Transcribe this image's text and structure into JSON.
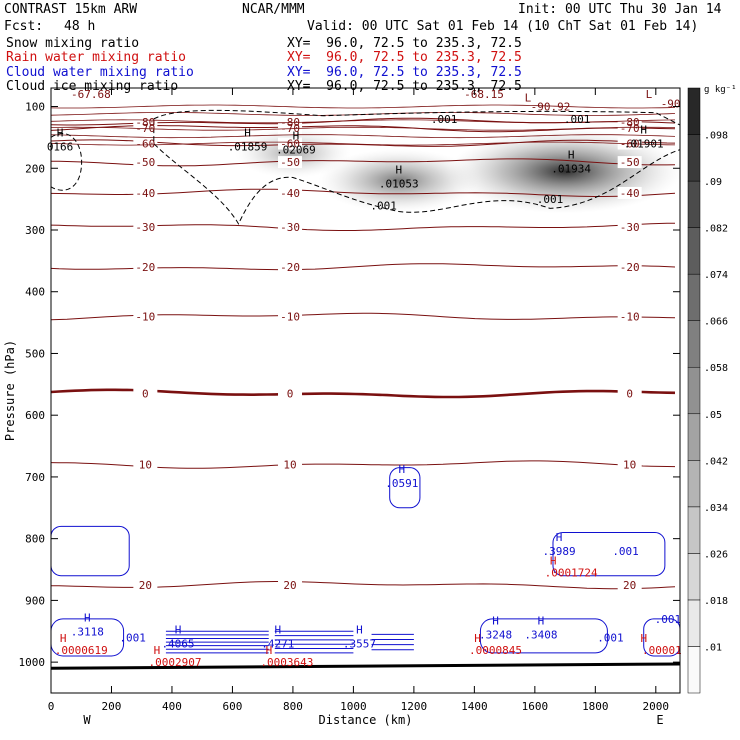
{
  "header": {
    "model": "CONTRAST 15km ARW",
    "center": "NCAR/MMM",
    "init": "Init: 00 UTC Thu 30 Jan 14",
    "fcst_label": "Fcst:",
    "fcst_value": "48 h",
    "valid": "Valid: 00 UTC Sat 01 Feb 14 (10 ChT Sat 01 Feb 14)"
  },
  "fields": [
    {
      "name": "Snow mixing ratio",
      "color": "#000000",
      "xy": "XY=  96.0, 72.5 to 235.3, 72.5"
    },
    {
      "name": "Rain water mixing ratio",
      "color": "#d01010",
      "xy": "XY=  96.0, 72.5 to 235.3, 72.5"
    },
    {
      "name": "Cloud water mixing ratio",
      "color": "#1010d0",
      "xy": "XY=  96.0, 72.5 to 235.3, 72.5"
    },
    {
      "name": "Cloud ice mixing ratio",
      "color": "#000000",
      "xy": "XY=  96.0, 72.5 to 235.3, 72.5"
    }
  ],
  "chart_data": {
    "type": "contour",
    "xlabel": "Distance (km)",
    "ylabel": "Pressure (hPa)",
    "xlim": [
      0,
      2080
    ],
    "ylim": [
      1050,
      70
    ],
    "x_ticks": [
      0,
      200,
      400,
      600,
      800,
      1000,
      1200,
      1400,
      1600,
      1800,
      2000
    ],
    "y_ticks": [
      100,
      200,
      300,
      400,
      500,
      600,
      700,
      800,
      900,
      1000
    ],
    "x_end_labels": {
      "left": "W",
      "right": "E"
    },
    "colorbar": {
      "unit": "g kg⁻¹",
      "levels": [
        ".01",
        ".018",
        ".026",
        ".034",
        ".042",
        ".05",
        ".058",
        ".066",
        ".074",
        ".082",
        ".09",
        ".098"
      ]
    },
    "temperature_contours": [
      {
        "label": "-80",
        "p": 125
      },
      {
        "label": "-70",
        "p": 135
      },
      {
        "label": "-60",
        "p": 160
      },
      {
        "label": "-50",
        "p": 190
      },
      {
        "label": "-40",
        "p": 240
      },
      {
        "label": "-30",
        "p": 295
      },
      {
        "label": "-20",
        "p": 360
      },
      {
        "label": "-10",
        "p": 440
      },
      {
        "label": "0",
        "p": 565
      },
      {
        "label": "10",
        "p": 680
      },
      {
        "label": "20",
        "p": 875
      }
    ],
    "thermal_extremes": [
      {
        "label": "-67.68",
        "x": 0,
        "p": 80
      },
      {
        "label": "-68.15",
        "x": 1300,
        "p": 80
      },
      {
        "label": "-90.92",
        "x": 1520,
        "p": 100
      },
      {
        "label": "L",
        "x": 1500,
        "p": 85
      },
      {
        "label": "L",
        "x": 1900,
        "p": 80
      },
      {
        "label": "-90",
        "x": 1950,
        "p": 95
      }
    ],
    "snow_maxima": [
      {
        "label": ".01859",
        "x": 650,
        "p": 165
      },
      {
        "label": ".02069",
        "x": 810,
        "p": 170
      },
      {
        "label": ".01053",
        "x": 1150,
        "p": 225
      },
      {
        "label": ".01934",
        "x": 1720,
        "p": 200
      },
      {
        "label": ".01901",
        "x": 1960,
        "p": 160
      },
      {
        "label": "0166",
        "x": 30,
        "p": 165
      }
    ],
    "cloud_ice_labels": [
      {
        "label": ".001",
        "x": 1300,
        "p": 120
      },
      {
        "label": ".001",
        "x": 1740,
        "p": 120
      },
      {
        "label": ".001",
        "x": 1100,
        "p": 260
      },
      {
        "label": ".001",
        "x": 1650,
        "p": 250
      }
    ],
    "cloud_water_maxima": [
      {
        "label": ".0591",
        "x": 1160,
        "p": 710
      },
      {
        "label": ".3989",
        "x": 1680,
        "p": 820
      },
      {
        "label": ".3118",
        "x": 120,
        "p": 950
      },
      {
        "label": ".4065",
        "x": 420,
        "p": 970
      },
      {
        "label": ".4271",
        "x": 750,
        "p": 970
      },
      {
        "label": ".3557",
        "x": 1020,
        "p": 970
      },
      {
        "label": ".3248",
        "x": 1470,
        "p": 955
      },
      {
        "label": ".3408",
        "x": 1620,
        "p": 955
      },
      {
        "label": ".001",
        "x": 270,
        "p": 960
      },
      {
        "label": ".001",
        "x": 1850,
        "p": 960
      },
      {
        "label": ".001",
        "x": 2040,
        "p": 930
      },
      {
        "label": ".001",
        "x": 1900,
        "p": 820
      }
    ],
    "rain_maxima": [
      {
        "label": ".0000619",
        "x": 100,
        "p": 980
      },
      {
        "label": ".0002907",
        "x": 410,
        "p": 1000
      },
      {
        "label": ".0003643",
        "x": 780,
        "p": 1000
      },
      {
        "label": ".0000845",
        "x": 1470,
        "p": 980
      },
      {
        "label": ".0001724",
        "x": 1720,
        "p": 855
      },
      {
        "label": ".00001",
        "x": 2020,
        "p": 980
      }
    ],
    "snow_shading": [
      {
        "x": 1700,
        "p": 205,
        "intensity": 0.085
      },
      {
        "x": 1150,
        "p": 220,
        "intensity": 0.045
      },
      {
        "x": 800,
        "p": 175,
        "intensity": 0.02
      }
    ]
  }
}
